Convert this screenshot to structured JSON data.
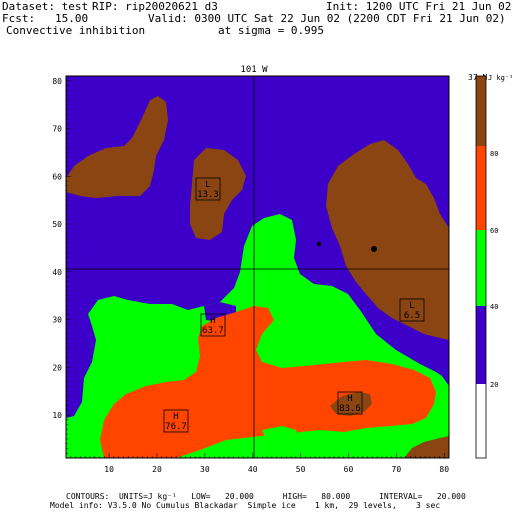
{
  "header": {
    "dataset": "Dataset: test",
    "rip": "RIP: rip20020621 d3",
    "init": "Init: 1200 UTC Fri 21 Jun 02",
    "fcst": "Fcst:   15.00",
    "valid": "Valid: 0300 UTC Sat 22 Jun 02 (2200 CDT Fri 21 Jun 02)",
    "field": "Convective inhibition",
    "level": "at sigma = 0.995"
  },
  "map": {
    "top_label": "101 W",
    "right_label": "37 N",
    "x_ticks": [
      "10",
      "20",
      "30",
      "40",
      "50",
      "60",
      "70",
      "80"
    ],
    "y_ticks": [
      "10",
      "20",
      "30",
      "40",
      "50",
      "60",
      "70",
      "80"
    ],
    "markers": [
      {
        "type": "L",
        "value": "13.3"
      },
      {
        "type": "H",
        "value": "63.7"
      },
      {
        "type": "L",
        "value": "6.5"
      },
      {
        "type": "H",
        "value": "83.6"
      },
      {
        "type": "H",
        "value": "76.7"
      }
    ]
  },
  "colorbar": {
    "unit": "J kg⁻¹",
    "labels": [
      "80",
      "60",
      "40",
      "20"
    ],
    "colors": [
      "#8b4513",
      "#ff4500",
      "#00ff00",
      "#3c00c8",
      "#ffffff"
    ]
  },
  "footer": {
    "contours": "CONTOURS:  UNITS=J kg⁻¹   LOW=   20.000      HIGH=   80.000      INTERVAL=   20.000",
    "model_info": "Model info: V3.5.0 No Cumulus Blackadar  Simple ice    1 km,  29 levels,    3 sec"
  }
}
